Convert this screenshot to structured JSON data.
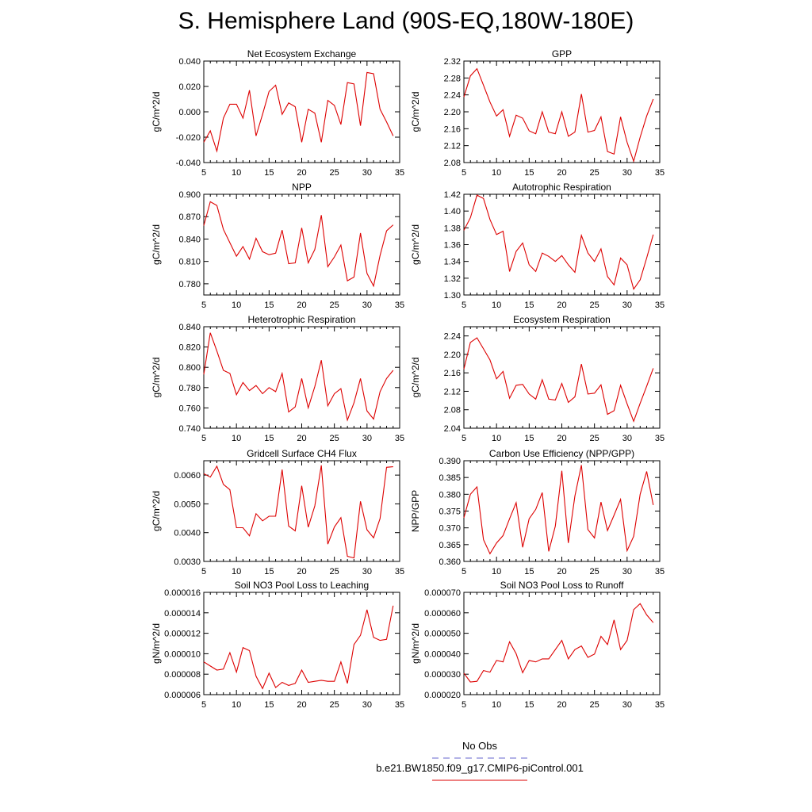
{
  "title": "S. Hemisphere Land (90S-EQ,180W-180E)",
  "legend": {
    "entries": [
      {
        "label": "No Obs",
        "color": "#6666cc",
        "dash": true
      },
      {
        "label": "b.e21.BW1850.f09_g17.CMIP6-piControl.001",
        "color": "#dd0000",
        "dash": false
      }
    ]
  },
  "chart_data": [
    {
      "type": "line",
      "title": "Net Ecosystem Exchange",
      "ylabel": "gC/m^2/d",
      "xlabel": "",
      "xlim": [
        5,
        35
      ],
      "ylim": [
        -0.04,
        0.04
      ],
      "xticks": [
        5,
        10,
        15,
        20,
        25,
        30,
        35
      ],
      "yticks": [
        "-0.040",
        "-0.020",
        "0.000",
        "0.020",
        "0.040"
      ],
      "series": [
        {
          "name": "b.e21.BW1850.f09_g17.CMIP6-piControl.001",
          "color": "#dd0000",
          "x": [
            5,
            6,
            7,
            8,
            9,
            10,
            11,
            12,
            13,
            14,
            15,
            16,
            17,
            18,
            19,
            20,
            21,
            22,
            23,
            24,
            25,
            26,
            27,
            28,
            29,
            30,
            31,
            32,
            33,
            34
          ],
          "y": [
            -0.024,
            -0.015,
            -0.031,
            -0.005,
            0.006,
            0.006,
            -0.005,
            0.017,
            -0.019,
            -0.002,
            0.016,
            0.021,
            -0.002,
            0.007,
            0.004,
            -0.024,
            0.002,
            -0.001,
            -0.024,
            0.009,
            0.005,
            -0.01,
            0.023,
            0.022,
            -0.011,
            0.031,
            0.03,
            0.002,
            -0.008,
            -0.019
          ]
        }
      ]
    },
    {
      "type": "line",
      "title": "GPP",
      "ylabel": "gC/m^2/d",
      "xlabel": "",
      "xlim": [
        5,
        35
      ],
      "ylim": [
        2.08,
        2.32
      ],
      "xticks": [
        5,
        10,
        15,
        20,
        25,
        30,
        35
      ],
      "yticks": [
        "2.08",
        "2.12",
        "2.16",
        "2.20",
        "2.24",
        "2.28",
        "2.32"
      ],
      "series": [
        {
          "name": "b.e21.BW1850.f09_g17.CMIP6-piControl.001",
          "color": "#dd0000",
          "x": [
            5,
            6,
            7,
            8,
            9,
            10,
            11,
            12,
            13,
            14,
            15,
            16,
            17,
            18,
            19,
            20,
            21,
            22,
            23,
            24,
            25,
            26,
            27,
            28,
            29,
            30,
            31,
            32,
            33,
            34
          ],
          "y": [
            2.235,
            2.285,
            2.302,
            2.263,
            2.223,
            2.19,
            2.205,
            2.142,
            2.192,
            2.185,
            2.155,
            2.148,
            2.2,
            2.152,
            2.148,
            2.2,
            2.142,
            2.152,
            2.242,
            2.152,
            2.156,
            2.188,
            2.106,
            2.1,
            2.188,
            2.128,
            2.083,
            2.14,
            2.19,
            2.23
          ]
        }
      ]
    },
    {
      "type": "line",
      "title": "NPP",
      "ylabel": "gC/m^2/d",
      "xlabel": "",
      "xlim": [
        5,
        35
      ],
      "ylim": [
        0.765,
        0.9
      ],
      "xticks": [
        5,
        10,
        15,
        20,
        25,
        30,
        35
      ],
      "yticks": [
        "0.780",
        "0.810",
        "0.840",
        "0.870",
        "0.900"
      ],
      "series": [
        {
          "name": "b.e21.BW1850.f09_g17.CMIP6-piControl.001",
          "color": "#dd0000",
          "x": [
            5,
            6,
            7,
            8,
            9,
            10,
            11,
            12,
            13,
            14,
            15,
            16,
            17,
            18,
            19,
            20,
            21,
            22,
            23,
            24,
            25,
            26,
            27,
            28,
            29,
            30,
            31,
            32,
            33,
            34
          ],
          "y": [
            0.858,
            0.89,
            0.885,
            0.853,
            0.835,
            0.817,
            0.83,
            0.813,
            0.841,
            0.823,
            0.819,
            0.821,
            0.852,
            0.807,
            0.808,
            0.855,
            0.808,
            0.826,
            0.872,
            0.803,
            0.816,
            0.832,
            0.784,
            0.789,
            0.848,
            0.794,
            0.777,
            0.818,
            0.851,
            0.859
          ]
        }
      ]
    },
    {
      "type": "line",
      "title": "Autotrophic Respiration",
      "ylabel": "gC/m^2/d",
      "xlabel": "",
      "xlim": [
        5,
        35
      ],
      "ylim": [
        1.3,
        1.42
      ],
      "xticks": [
        5,
        10,
        15,
        20,
        25,
        30,
        35
      ],
      "yticks": [
        "1.30",
        "1.32",
        "1.34",
        "1.36",
        "1.38",
        "1.40",
        "1.42"
      ],
      "series": [
        {
          "name": "b.e21.BW1850.f09_g17.CMIP6-piControl.001",
          "color": "#dd0000",
          "x": [
            5,
            6,
            7,
            8,
            9,
            10,
            11,
            12,
            13,
            14,
            15,
            16,
            17,
            18,
            19,
            20,
            21,
            22,
            23,
            24,
            25,
            26,
            27,
            28,
            29,
            30,
            31,
            32,
            33,
            34
          ],
          "y": [
            1.377,
            1.392,
            1.419,
            1.415,
            1.39,
            1.372,
            1.376,
            1.328,
            1.352,
            1.362,
            1.336,
            1.328,
            1.35,
            1.346,
            1.34,
            1.347,
            1.336,
            1.327,
            1.371,
            1.35,
            1.34,
            1.355,
            1.322,
            1.312,
            1.344,
            1.336,
            1.307,
            1.318,
            1.344,
            1.372
          ]
        }
      ]
    },
    {
      "type": "line",
      "title": "Heterotrophic Respiration",
      "ylabel": "gC/m^2/d",
      "xlabel": "",
      "xlim": [
        5,
        35
      ],
      "ylim": [
        0.74,
        0.84
      ],
      "xticks": [
        5,
        10,
        15,
        20,
        25,
        30,
        35
      ],
      "yticks": [
        "0.740",
        "0.760",
        "0.780",
        "0.800",
        "0.820",
        "0.840"
      ],
      "series": [
        {
          "name": "b.e21.BW1850.f09_g17.CMIP6-piControl.001",
          "color": "#dd0000",
          "x": [
            5,
            6,
            7,
            8,
            9,
            10,
            11,
            12,
            13,
            14,
            15,
            16,
            17,
            18,
            19,
            20,
            21,
            22,
            23,
            24,
            25,
            26,
            27,
            28,
            29,
            30,
            31,
            32,
            33,
            34
          ],
          "y": [
            0.793,
            0.834,
            0.816,
            0.797,
            0.794,
            0.773,
            0.785,
            0.777,
            0.782,
            0.774,
            0.78,
            0.776,
            0.794,
            0.756,
            0.761,
            0.789,
            0.76,
            0.781,
            0.807,
            0.762,
            0.774,
            0.779,
            0.748,
            0.765,
            0.789,
            0.757,
            0.749,
            0.776,
            0.789,
            0.797
          ]
        }
      ]
    },
    {
      "type": "line",
      "title": "Ecosystem Respiration",
      "ylabel": "gC/m^2/d",
      "xlabel": "",
      "xlim": [
        5,
        35
      ],
      "ylim": [
        2.04,
        2.26
      ],
      "xticks": [
        5,
        10,
        15,
        20,
        25,
        30,
        35
      ],
      "yticks": [
        "2.04",
        "2.08",
        "2.12",
        "2.16",
        "2.20",
        "2.24"
      ],
      "series": [
        {
          "name": "b.e21.BW1850.f09_g17.CMIP6-piControl.001",
          "color": "#dd0000",
          "x": [
            5,
            6,
            7,
            8,
            9,
            10,
            11,
            12,
            13,
            14,
            15,
            16,
            17,
            18,
            19,
            20,
            21,
            22,
            23,
            24,
            25,
            26,
            27,
            28,
            29,
            30,
            31,
            32,
            33,
            34
          ],
          "y": [
            2.168,
            2.226,
            2.236,
            2.212,
            2.188,
            2.147,
            2.163,
            2.105,
            2.133,
            2.135,
            2.114,
            2.103,
            2.145,
            2.103,
            2.101,
            2.137,
            2.096,
            2.108,
            2.179,
            2.114,
            2.116,
            2.134,
            2.07,
            2.078,
            2.133,
            2.093,
            2.055,
            2.094,
            2.131,
            2.17
          ]
        }
      ]
    },
    {
      "type": "line",
      "title": "Gridcell Surface CH4 Flux",
      "ylabel": "gC/m^2/d",
      "xlabel": "",
      "xlim": [
        5,
        35
      ],
      "ylim": [
        0.003,
        0.0065
      ],
      "xticks": [
        5,
        10,
        15,
        20,
        25,
        30,
        35
      ],
      "yticks": [
        "0.0030",
        "0.0040",
        "0.0050",
        "0.0060"
      ],
      "series": [
        {
          "name": "b.e21.BW1850.f09_g17.CMIP6-piControl.001",
          "color": "#dd0000",
          "x": [
            5,
            6,
            7,
            8,
            9,
            10,
            11,
            12,
            13,
            14,
            15,
            16,
            17,
            18,
            19,
            20,
            21,
            22,
            23,
            24,
            25,
            26,
            27,
            28,
            29,
            30,
            31,
            32,
            33,
            34
          ],
          "y": [
            0.00605,
            0.00593,
            0.00631,
            0.00568,
            0.00549,
            0.00417,
            0.00417,
            0.00389,
            0.00466,
            0.00441,
            0.00457,
            0.00457,
            0.00619,
            0.00423,
            0.00406,
            0.00563,
            0.00419,
            0.00493,
            0.00634,
            0.0036,
            0.0042,
            0.00452,
            0.00318,
            0.00312,
            0.00509,
            0.0041,
            0.00382,
            0.00449,
            0.00627,
            0.00629
          ]
        }
      ]
    },
    {
      "type": "line",
      "title": "Carbon Use Efficiency (NPP/GPP)",
      "ylabel": "NPP/GPP",
      "xlabel": "",
      "xlim": [
        5,
        35
      ],
      "ylim": [
        0.36,
        0.39
      ],
      "xticks": [
        5,
        10,
        15,
        20,
        25,
        30,
        35
      ],
      "yticks": [
        "0.360",
        "0.365",
        "0.370",
        "0.375",
        "0.380",
        "0.385",
        "0.390"
      ],
      "series": [
        {
          "name": "b.e21.BW1850.f09_g17.CMIP6-piControl.001",
          "color": "#dd0000",
          "x": [
            5,
            6,
            7,
            8,
            9,
            10,
            11,
            12,
            13,
            14,
            15,
            16,
            17,
            18,
            19,
            20,
            21,
            22,
            23,
            24,
            25,
            26,
            27,
            28,
            29,
            30,
            31,
            32,
            33,
            34
          ],
          "y": [
            0.373,
            0.38,
            0.3822,
            0.3665,
            0.3623,
            0.3655,
            0.3677,
            0.3727,
            0.3775,
            0.3642,
            0.3727,
            0.3755,
            0.3805,
            0.363,
            0.3705,
            0.387,
            0.3655,
            0.3795,
            0.3887,
            0.3695,
            0.367,
            0.3777,
            0.3692,
            0.3738,
            0.3785,
            0.3632,
            0.3675,
            0.38,
            0.3868,
            0.3768
          ]
        }
      ]
    },
    {
      "type": "line",
      "title": "Soil NO3 Pool Loss to Leaching",
      "ylabel": "gN/m^2/d",
      "xlabel": "",
      "xlim": [
        5,
        35
      ],
      "ylim": [
        6e-06,
        1.6e-05
      ],
      "xticks": [
        5,
        10,
        15,
        20,
        25,
        30,
        35
      ],
      "yticks": [
        "0.000006",
        "0.000008",
        "0.000010",
        "0.000012",
        "0.000014",
        "0.000016"
      ],
      "series": [
        {
          "name": "b.e21.BW1850.f09_g17.CMIP6-piControl.001",
          "color": "#dd0000",
          "x": [
            5,
            6,
            7,
            8,
            9,
            10,
            11,
            12,
            13,
            14,
            15,
            16,
            17,
            18,
            19,
            20,
            21,
            22,
            23,
            24,
            25,
            26,
            27,
            28,
            29,
            30,
            31,
            32,
            33,
            34
          ],
          "y": [
            9.2e-06,
            8.8e-06,
            8.4e-06,
            8.5e-06,
            1.01e-05,
            8.2e-06,
            1.06e-05,
            1.03e-05,
            7.8e-06,
            6.6e-06,
            8.1e-06,
            6.7e-06,
            7.2e-06,
            6.9e-06,
            7.1e-06,
            8.4e-06,
            7.2e-06,
            7.3e-06,
            7.4e-06,
            7.3e-06,
            7.3e-06,
            9.2e-06,
            7.1e-06,
            1.09e-05,
            1.18e-05,
            1.43e-05,
            1.16e-05,
            1.13e-05,
            1.14e-05,
            1.47e-05
          ]
        }
      ]
    },
    {
      "type": "line",
      "title": "Soil NO3 Pool Loss to Runoff",
      "ylabel": "gN/m^2/d",
      "xlabel": "",
      "xlim": [
        5,
        35
      ],
      "ylim": [
        2e-05,
        7e-05
      ],
      "xticks": [
        5,
        10,
        15,
        20,
        25,
        30,
        35
      ],
      "yticks": [
        "0.000020",
        "0.000030",
        "0.000040",
        "0.000050",
        "0.000060",
        "0.000070"
      ],
      "series": [
        {
          "name": "b.e21.BW1850.f09_g17.CMIP6-piControl.001",
          "color": "#dd0000",
          "x": [
            5,
            6,
            7,
            8,
            9,
            10,
            11,
            12,
            13,
            14,
            15,
            16,
            17,
            18,
            19,
            20,
            21,
            22,
            23,
            24,
            25,
            26,
            27,
            28,
            29,
            30,
            31,
            32,
            33,
            34
          ],
          "y": [
            3.05e-05,
            2.62e-05,
            2.65e-05,
            3.18e-05,
            3.1e-05,
            3.67e-05,
            3.6e-05,
            4.58e-05,
            4e-05,
            3.07e-05,
            3.67e-05,
            3.6e-05,
            3.75e-05,
            3.75e-05,
            4.2e-05,
            4.65e-05,
            3.75e-05,
            4.2e-05,
            4.38e-05,
            3.82e-05,
            3.98e-05,
            4.85e-05,
            4.45e-05,
            5.65e-05,
            4.2e-05,
            4.65e-05,
            6.15e-05,
            6.45e-05,
            5.9e-05,
            5.52e-05
          ]
        }
      ]
    }
  ]
}
